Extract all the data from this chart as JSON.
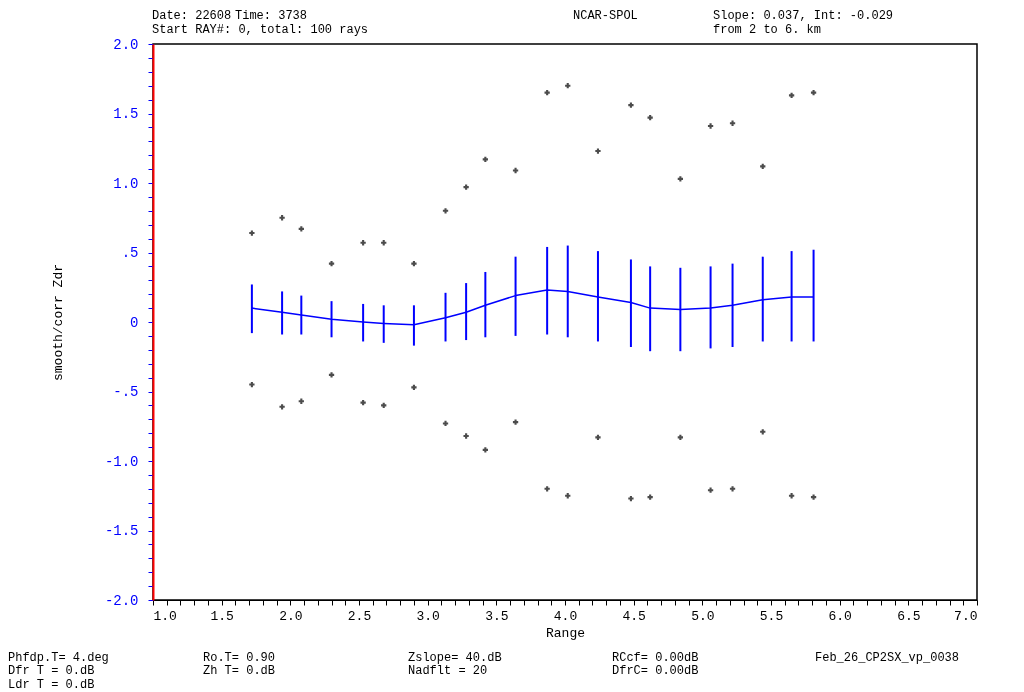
{
  "chart_data": {
    "type": "line",
    "xlabel": "Range",
    "ylabel": "smooth/corr Zdr",
    "x": [
      1.72,
      1.94,
      2.08,
      2.3,
      2.53,
      2.68,
      2.9,
      3.13,
      3.28,
      3.42,
      3.64,
      3.87,
      4.02,
      4.24,
      4.48,
      4.62,
      4.84,
      5.06,
      5.22,
      5.44,
      5.65,
      5.81
    ],
    "series": [
      {
        "type": "line",
        "color": "#0000ff",
        "values": [
          0.1,
          0.07,
          0.05,
          0.02,
          0.0,
          -0.01,
          -0.02,
          0.03,
          0.07,
          0.12,
          0.19,
          0.23,
          0.22,
          0.18,
          0.14,
          0.1,
          0.09,
          0.1,
          0.12,
          0.16,
          0.18,
          0.18
        ],
        "errors": [
          [
            -0.08,
            0.27
          ],
          [
            -0.09,
            0.22
          ],
          [
            -0.09,
            0.19
          ],
          [
            -0.11,
            0.15
          ],
          [
            -0.14,
            0.13
          ],
          [
            -0.15,
            0.12
          ],
          [
            -0.17,
            0.12
          ],
          [
            -0.14,
            0.21
          ],
          [
            -0.13,
            0.28
          ],
          [
            -0.11,
            0.36
          ],
          [
            -0.1,
            0.47
          ],
          [
            -0.09,
            0.54
          ],
          [
            -0.11,
            0.55
          ],
          [
            -0.14,
            0.51
          ],
          [
            -0.18,
            0.45
          ],
          [
            -0.21,
            0.4
          ],
          [
            -0.21,
            0.39
          ],
          [
            -0.19,
            0.4
          ],
          [
            -0.18,
            0.42
          ],
          [
            -0.14,
            0.47
          ],
          [
            -0.14,
            0.51
          ],
          [
            -0.14,
            0.52
          ]
        ]
      },
      {
        "type": "scatter",
        "color": "#000000",
        "marker": "cross",
        "values": [
          0.64,
          0.75,
          0.67,
          0.42,
          0.57,
          0.57,
          0.42,
          0.8,
          0.97,
          1.17,
          1.09,
          1.65,
          1.7,
          1.23,
          1.56,
          1.47,
          1.03,
          1.41,
          1.43,
          1.12,
          1.63,
          1.65
        ]
      },
      {
        "type": "scatter",
        "color": "#000000",
        "marker": "cross",
        "values": [
          -0.45,
          -0.61,
          -0.57,
          -0.38,
          -0.58,
          -0.6,
          -0.47,
          -0.73,
          -0.82,
          -0.92,
          -0.72,
          -1.2,
          -1.25,
          -0.83,
          -1.27,
          -1.26,
          -0.83,
          -1.21,
          -1.2,
          -0.79,
          -1.25,
          -1.26
        ]
      }
    ],
    "xlim": [
      1,
      7
    ],
    "xticks": [
      {
        "value": 1,
        "label": "1.0"
      },
      {
        "value": 1.1,
        "label": null
      },
      {
        "value": 1.2,
        "label": null
      },
      {
        "value": 1.3,
        "label": null
      },
      {
        "value": 1.4,
        "label": null
      },
      1.5,
      {
        "value": 1.6,
        "label": null
      },
      {
        "value": 1.7,
        "label": null
      },
      {
        "value": 1.8,
        "label": null
      },
      {
        "value": 1.9,
        "label": null
      },
      {
        "value": 2,
        "label": "2.0"
      },
      {
        "value": 2.1,
        "label": null
      },
      {
        "value": 2.2,
        "label": null
      },
      {
        "value": 2.3,
        "label": null
      },
      {
        "value": 2.4,
        "label": null
      },
      2.5,
      {
        "value": 2.6,
        "label": null
      },
      {
        "value": 2.7,
        "label": null
      },
      {
        "value": 2.8,
        "label": null
      },
      {
        "value": 2.9,
        "label": null
      },
      {
        "value": 3,
        "label": "3.0"
      },
      {
        "value": 3.1,
        "label": null
      },
      {
        "value": 3.2,
        "label": null
      },
      {
        "value": 3.3,
        "label": null
      },
      {
        "value": 3.4,
        "label": null
      },
      3.5,
      {
        "value": 3.6,
        "label": null
      },
      {
        "value": 3.7,
        "label": null
      },
      {
        "value": 3.8,
        "label": null
      },
      {
        "value": 3.9,
        "label": null
      },
      {
        "value": 4,
        "label": "4.0"
      },
      {
        "value": 4.1,
        "label": null
      },
      {
        "value": 4.2,
        "label": null
      },
      {
        "value": 4.3,
        "label": null
      },
      {
        "value": 4.4,
        "label": null
      },
      4.5,
      {
        "value": 4.6,
        "label": null
      },
      {
        "value": 4.7,
        "label": null
      },
      {
        "value": 4.8,
        "label": null
      },
      {
        "value": 4.9,
        "label": null
      },
      {
        "value": 5,
        "label": "5.0"
      },
      {
        "value": 5.1,
        "label": null
      },
      {
        "value": 5.2,
        "label": null
      },
      {
        "value": 5.3,
        "label": null
      },
      {
        "value": 5.4,
        "label": null
      },
      5.5,
      {
        "value": 5.6,
        "label": null
      },
      {
        "value": 5.7,
        "label": null
      },
      {
        "value": 5.8,
        "label": null
      },
      {
        "value": 5.9,
        "label": null
      },
      {
        "value": 6,
        "label": "6.0"
      },
      {
        "value": 6.1,
        "label": null
      },
      {
        "value": 6.2,
        "label": null
      },
      {
        "value": 6.3,
        "label": null
      },
      {
        "value": 6.4,
        "label": null
      },
      6.5,
      {
        "value": 6.6,
        "label": null
      },
      {
        "value": 6.7,
        "label": null
      },
      {
        "value": 6.8,
        "label": null
      },
      {
        "value": 6.9,
        "label": null
      },
      {
        "value": 7,
        "label": "7.0"
      }
    ],
    "ylim": [
      -2,
      2
    ],
    "yticks": [
      {
        "value": -2,
        "label": "-2.0"
      },
      {
        "value": -1.9,
        "label": null
      },
      {
        "value": -1.8,
        "label": null
      },
      {
        "value": -1.7,
        "label": null
      },
      {
        "value": -1.6,
        "label": null
      },
      -1.5,
      {
        "value": -1.4,
        "label": null
      },
      {
        "value": -1.3,
        "label": null
      },
      {
        "value": -1.2,
        "label": null
      },
      {
        "value": -1.1,
        "label": null
      },
      {
        "value": -1,
        "label": "-1.0"
      },
      {
        "value": -0.9,
        "label": null
      },
      {
        "value": -0.8,
        "label": null
      },
      {
        "value": -0.7,
        "label": null
      },
      {
        "value": -0.6,
        "label": null
      },
      {
        "value": -0.5,
        "label": "-.5"
      },
      {
        "value": -0.4,
        "label": null
      },
      {
        "value": -0.3,
        "label": null
      },
      {
        "value": -0.2,
        "label": null
      },
      {
        "value": -0.1,
        "label": null
      },
      0,
      {
        "value": 0.1,
        "label": null
      },
      {
        "value": 0.2,
        "label": null
      },
      {
        "value": 0.3,
        "label": null
      },
      {
        "value": 0.4,
        "label": null
      },
      {
        "value": 0.5,
        "label": ".5"
      },
      {
        "value": 0.6,
        "label": null
      },
      {
        "value": 0.7,
        "label": null
      },
      {
        "value": 0.8,
        "label": null
      },
      {
        "value": 0.9,
        "label": null
      },
      {
        "value": 1,
        "label": "1.0"
      },
      {
        "value": 1.1,
        "label": null
      },
      {
        "value": 1.2,
        "label": null
      },
      {
        "value": 1.3,
        "label": null
      },
      {
        "value": 1.4,
        "label": null
      },
      1.5,
      {
        "value": 1.6,
        "label": null
      },
      {
        "value": 1.7,
        "label": null
      },
      {
        "value": 1.8,
        "label": null
      },
      {
        "value": 1.9,
        "label": null
      },
      {
        "value": 2,
        "label": "2.0"
      }
    ],
    "annotations": [
      "Date: 22608",
      "Time: 3738",
      "NCAR-SPOL",
      "Slope: 0.037, Int: -0.029",
      "Start RAY#:         0, total: 100 rays",
      "from    2   to    6. km",
      "Phfdp.T= 4.deg",
      "Dfr T  = 0.dB",
      "Ldr T  = 0.dB",
      "Ro.T= 0.90",
      "Zh T=  0.dB",
      "Zslope= 40.dB",
      "Nadflt = 20",
      "RCcf= 0.00dB",
      "DfrC= 0.00dB",
      "Feb_26_CP2SX_vp_0038"
    ]
  }
}
